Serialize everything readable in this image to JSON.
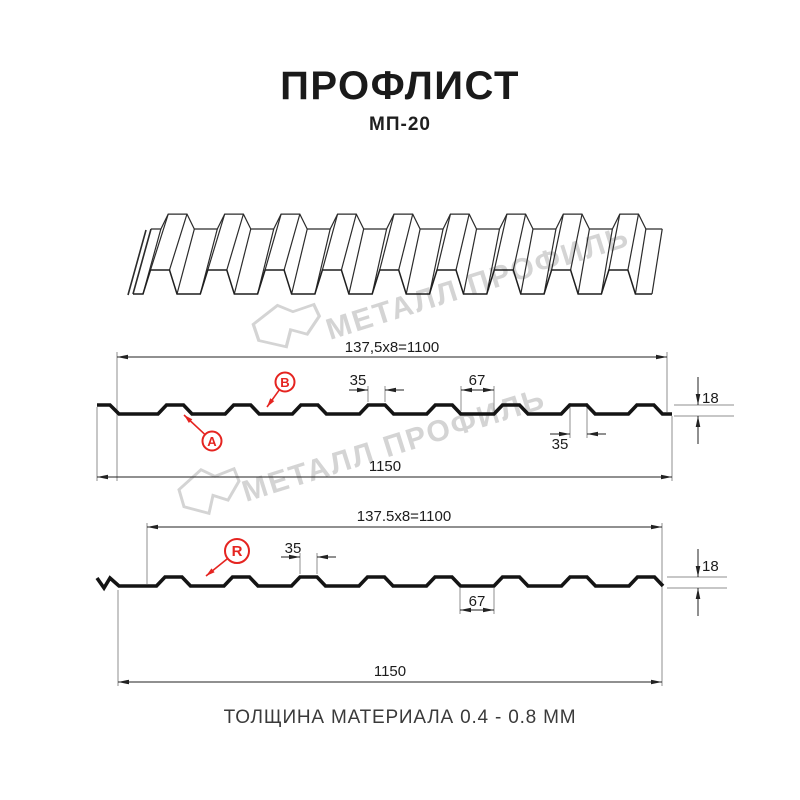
{
  "header": {
    "title": "ПРОФЛИСТ",
    "subtitle": "МП-20"
  },
  "watermark": {
    "text": "МЕТАЛЛ ПРОФИЛЬ"
  },
  "footer": {
    "note": "ТОЛЩИНА МАТЕРИАЛА 0.4 - 0.8 ММ"
  },
  "colors": {
    "accent_red": "#e52420",
    "drawing_line": "#141414",
    "dimension_line": "#222222",
    "extension_line": "#8f8f8f",
    "watermark_gray": "#d4d4d4"
  },
  "profile_specs": {
    "name": "МП-20",
    "total_width_mm": 1150,
    "working_width_mm": 1100,
    "rib_pitch_mm": 137.5,
    "rib_count": 8,
    "rib_height_mm": 18,
    "rib_top_mm": 35,
    "valley_opening_mm": 67,
    "thickness_range_mm": "0.4 - 0.8"
  },
  "section_a": {
    "dim_pitch": "137,5x8=1100",
    "dim_rib_top": "35",
    "dim_valley": "67",
    "dim_height": "18",
    "dim_rib_top_bottom": "35",
    "dim_total": "1150",
    "marker_a": "A",
    "marker_b": "B"
  },
  "section_b": {
    "dim_pitch": "137.5x8=1100",
    "dim_rib_top": "35",
    "dim_valley": "67",
    "dim_height": "18",
    "dim_total": "1150",
    "marker_r": "R"
  }
}
